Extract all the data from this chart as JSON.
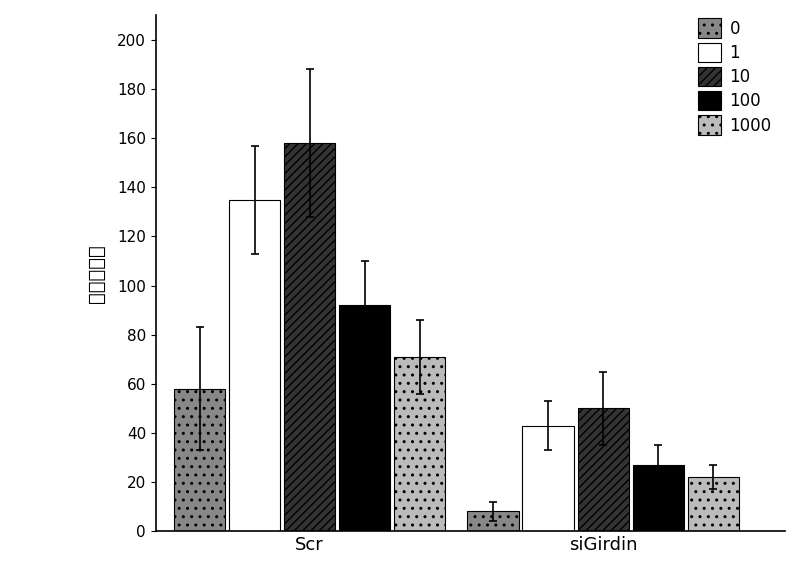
{
  "groups": [
    "Scr",
    "siGirdin"
  ],
  "series_labels": [
    "0",
    "1",
    "10",
    "100",
    "1000"
  ],
  "values": {
    "Scr": [
      58,
      135,
      158,
      92,
      71
    ],
    "siGirdin": [
      8,
      43,
      50,
      27,
      22
    ]
  },
  "errors": {
    "Scr": [
      25,
      22,
      30,
      18,
      15
    ],
    "siGirdin": [
      4,
      10,
      15,
      8,
      5
    ]
  },
  "ylabel": "棵化细胞数",
  "ylim": [
    0,
    210
  ],
  "yticks": [
    0,
    20,
    40,
    60,
    80,
    100,
    120,
    140,
    160,
    180,
    200
  ],
  "bar_width": 0.075,
  "group_centers": [
    0.3,
    0.72
  ],
  "background_color": "#ffffff",
  "hatch_patterns": [
    "..",
    "",
    "////",
    "",
    ".."
  ],
  "face_colors": [
    "#888888",
    "#ffffff",
    "#333333",
    "#000000",
    "#bbbbbb"
  ],
  "edge_colors": [
    "#000000",
    "#000000",
    "#000000",
    "#000000",
    "#000000"
  ]
}
